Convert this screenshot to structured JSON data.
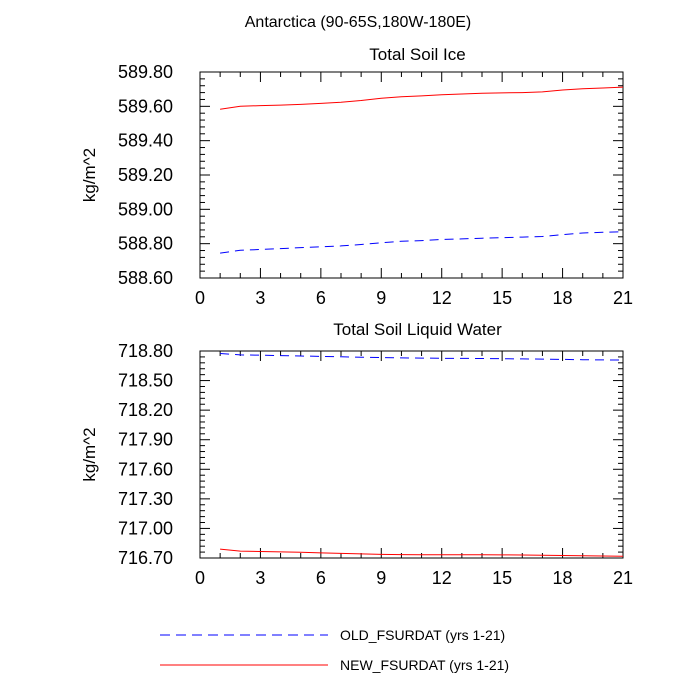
{
  "figure_title": "Antarctica (90-65S,180W-180E)",
  "legend": [
    {
      "label": "OLD_FSURDAT (yrs 1-21)",
      "color": "#0000ff",
      "style": "dashed"
    },
    {
      "label": "NEW_FSURDAT (yrs 1-21)",
      "color": "#ff0000",
      "style": "solid"
    }
  ],
  "chart_data": [
    {
      "type": "line",
      "title": "Total Soil Ice",
      "xlabel": "",
      "ylabel": "kg/m^2",
      "xlim": [
        0,
        21
      ],
      "ylim": [
        588.6,
        589.8
      ],
      "xticks": [
        0,
        3,
        6,
        9,
        12,
        15,
        18,
        21
      ],
      "xtick_labels": [
        "0",
        "3",
        "6",
        "9",
        "12",
        "15",
        "18",
        "21"
      ],
      "yticks": [
        588.6,
        588.8,
        589.0,
        589.2,
        589.4,
        589.6,
        589.8
      ],
      "ytick_labels": [
        "588.60",
        "588.80",
        "589.00",
        "589.20",
        "589.40",
        "589.60",
        "589.80"
      ],
      "x": [
        1,
        2,
        3,
        4,
        5,
        6,
        7,
        8,
        9,
        10,
        11,
        12,
        13,
        14,
        15,
        16,
        17,
        18,
        19,
        20,
        21
      ],
      "series": [
        {
          "name": "OLD_FSURDAT (yrs 1-21)",
          "color": "#0000ff",
          "style": "dashed",
          "values": [
            588.745,
            588.762,
            588.766,
            588.771,
            588.777,
            588.782,
            588.787,
            588.795,
            588.805,
            588.814,
            588.818,
            588.824,
            588.828,
            588.832,
            588.835,
            588.838,
            588.842,
            588.853,
            588.862,
            588.866,
            588.87
          ]
        },
        {
          "name": "NEW_FSURDAT (yrs 1-21)",
          "color": "#ff0000",
          "style": "solid",
          "values": [
            589.583,
            589.6,
            589.604,
            589.607,
            589.611,
            589.617,
            589.624,
            589.634,
            589.647,
            589.656,
            589.661,
            589.668,
            589.672,
            589.676,
            589.678,
            589.68,
            589.684,
            589.695,
            589.703,
            589.707,
            589.712
          ]
        }
      ]
    },
    {
      "type": "line",
      "title": "Total Soil Liquid Water",
      "xlabel": "",
      "ylabel": "kg/m^2",
      "xlim": [
        0,
        21
      ],
      "ylim": [
        716.7,
        718.8
      ],
      "xticks": [
        0,
        3,
        6,
        9,
        12,
        15,
        18,
        21
      ],
      "xtick_labels": [
        "0",
        "3",
        "6",
        "9",
        "12",
        "15",
        "18",
        "21"
      ],
      "yticks": [
        716.7,
        717.0,
        717.3,
        717.6,
        717.9,
        718.2,
        718.5,
        718.8
      ],
      "ytick_labels": [
        "716.70",
        "717.00",
        "717.30",
        "717.60",
        "717.90",
        "718.20",
        "718.50",
        "718.80"
      ],
      "x": [
        1,
        2,
        3,
        4,
        5,
        6,
        7,
        8,
        9,
        10,
        11,
        12,
        13,
        14,
        15,
        16,
        17,
        18,
        19,
        20,
        21
      ],
      "series": [
        {
          "name": "OLD_FSURDAT (yrs 1-21)",
          "color": "#0000ff",
          "style": "dashed",
          "values": [
            718.775,
            718.76,
            718.757,
            718.753,
            718.749,
            718.745,
            718.741,
            718.737,
            718.733,
            718.73,
            718.728,
            718.726,
            718.725,
            718.724,
            718.722,
            718.72,
            718.718,
            718.715,
            718.712,
            718.71,
            718.708
          ]
        },
        {
          "name": "NEW_FSURDAT (yrs 1-21)",
          "color": "#ff0000",
          "style": "solid",
          "values": [
            716.79,
            716.77,
            716.766,
            716.762,
            716.758,
            716.752,
            716.747,
            716.742,
            716.737,
            716.734,
            716.733,
            716.732,
            716.732,
            716.732,
            716.731,
            716.73,
            716.728,
            716.725,
            716.722,
            716.72,
            716.718
          ]
        }
      ]
    }
  ]
}
